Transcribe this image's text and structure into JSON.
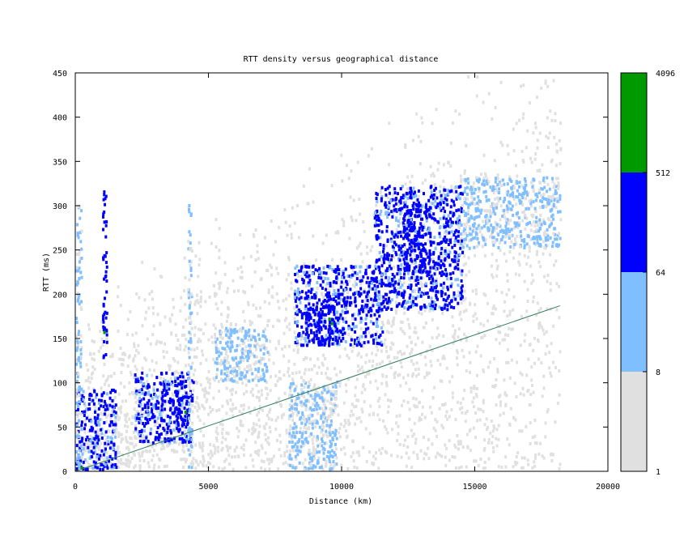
{
  "chart_data": {
    "type": "heatmap",
    "title": "RTT density versus geographical distance",
    "xlabel": "Distance (km)",
    "ylabel": "RTT (ms)",
    "xlim": [
      0,
      20000
    ],
    "ylim": [
      0,
      450
    ],
    "xticks": [
      0,
      5000,
      10000,
      15000,
      20000
    ],
    "yticks": [
      0,
      50,
      100,
      150,
      200,
      250,
      300,
      350,
      400,
      450
    ],
    "colorbar": {
      "scale": "log",
      "tick_labels": [
        "1",
        "8",
        "64",
        "512",
        "4096"
      ],
      "bands": [
        {
          "from": 1,
          "to": 8,
          "color": "#e0e0e0"
        },
        {
          "from": 8,
          "to": 64,
          "color": "#80bfff"
        },
        {
          "from": 64,
          "to": 512,
          "color": "#0000ff"
        },
        {
          "from": 512,
          "to": 4096,
          "color": "#009900"
        }
      ]
    },
    "reference_line": {
      "color": "#2e7d5b",
      "points": [
        [
          0,
          0
        ],
        [
          18200,
          187
        ]
      ]
    },
    "clusters": [
      {
        "x_range": [
          0,
          1500
        ],
        "y_range": [
          0,
          90
        ],
        "level": 2
      },
      {
        "x_range": [
          0,
          200
        ],
        "y_range": [
          0,
          300
        ],
        "level": 1
      },
      {
        "x_range": [
          1000,
          1150
        ],
        "y_range": [
          120,
          320
        ],
        "level": 3
      },
      {
        "x_range": [
          2200,
          4400
        ],
        "y_range": [
          30,
          110
        ],
        "level": 2
      },
      {
        "x_range": [
          3600,
          4200
        ],
        "y_range": [
          40,
          90
        ],
        "level": 3
      },
      {
        "x_range": [
          4200,
          4350
        ],
        "y_range": [
          0,
          300
        ],
        "level": 1
      },
      {
        "x_range": [
          5200,
          7200
        ],
        "y_range": [
          100,
          160
        ],
        "level": 1
      },
      {
        "x_range": [
          8000,
          9800
        ],
        "y_range": [
          0,
          100
        ],
        "level": 1
      },
      {
        "x_range": [
          8200,
          11500
        ],
        "y_range": [
          140,
          230
        ],
        "level": 2
      },
      {
        "x_range": [
          8600,
          9700
        ],
        "y_range": [
          140,
          200
        ],
        "level": 3
      },
      {
        "x_range": [
          11200,
          14500
        ],
        "y_range": [
          180,
          320
        ],
        "level": 2
      },
      {
        "x_range": [
          12300,
          13300
        ],
        "y_range": [
          220,
          300
        ],
        "level": 3
      },
      {
        "x_range": [
          14500,
          18200
        ],
        "y_range": [
          250,
          330
        ],
        "level": 1
      }
    ]
  }
}
